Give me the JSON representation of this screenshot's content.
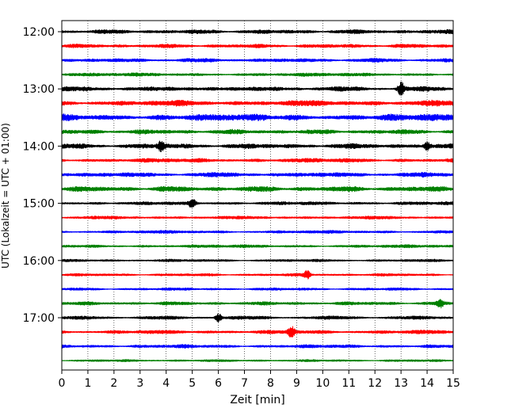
{
  "chart_data": {
    "type": "line",
    "title": "",
    "xlabel": "Zeit  [min]",
    "ylabel": "UTC (Lokalzeit = UTC + 01:00)",
    "xlim": [
      0,
      15
    ],
    "x_ticks": [
      "0",
      "1",
      "2",
      "3",
      "4",
      "5",
      "6",
      "7",
      "8",
      "9",
      "10",
      "11",
      "12",
      "13",
      "14",
      "15"
    ],
    "y_ticks": [
      {
        "label": "12:00",
        "trace": 0
      },
      {
        "label": "13:00",
        "trace": 4
      },
      {
        "label": "14:00",
        "trace": 8
      },
      {
        "label": "15:00",
        "trace": 12
      },
      {
        "label": "16:00",
        "trace": 16
      },
      {
        "label": "17:00",
        "trace": 20
      }
    ],
    "grid": "vertical dotted at each minute",
    "trace_interval_min": 15,
    "trace_count": 24,
    "series_colors": [
      "#000000",
      "#ff0000",
      "#0000ff",
      "#008000"
    ],
    "trace_start_times": [
      "12:00",
      "12:15",
      "12:30",
      "12:45",
      "13:00",
      "13:15",
      "13:30",
      "13:45",
      "14:00",
      "14:15",
      "14:30",
      "14:45",
      "15:00",
      "15:15",
      "15:30",
      "15:45",
      "16:00",
      "16:15",
      "16:30",
      "16:45",
      "17:00",
      "17:15",
      "17:30",
      "17:45"
    ],
    "trace_amplitude_level": [
      0.55,
      0.5,
      0.5,
      0.45,
      0.6,
      0.75,
      0.9,
      0.6,
      0.65,
      0.55,
      0.6,
      0.7,
      0.45,
      0.4,
      0.4,
      0.4,
      0.35,
      0.35,
      0.35,
      0.45,
      0.45,
      0.5,
      0.45,
      0.3
    ],
    "notable_bursts": [
      {
        "trace": 4,
        "minute": 13.0,
        "strength": 1.6
      },
      {
        "trace": 8,
        "minute": 3.8,
        "strength": 1.2
      },
      {
        "trace": 8,
        "minute": 14.0,
        "strength": 1.1
      },
      {
        "trace": 12,
        "minute": 5.0,
        "strength": 1.0
      },
      {
        "trace": 17,
        "minute": 9.4,
        "strength": 1.0
      },
      {
        "trace": 20,
        "minute": 6.0,
        "strength": 1.1
      },
      {
        "trace": 21,
        "minute": 8.8,
        "strength": 1.3
      },
      {
        "trace": 19,
        "minute": 14.5,
        "strength": 0.9
      }
    ]
  }
}
